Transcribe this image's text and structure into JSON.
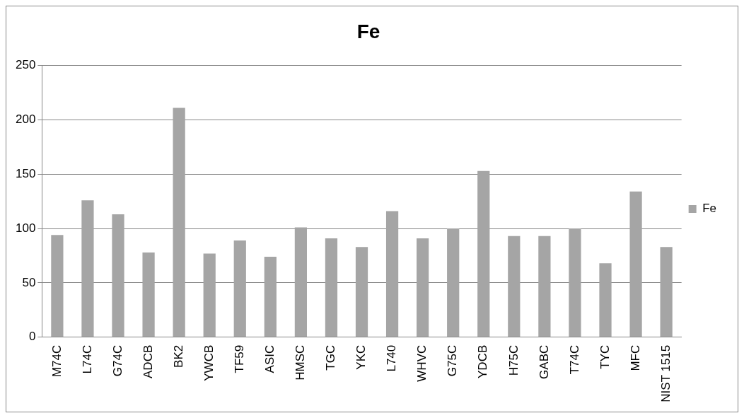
{
  "chart_data": {
    "type": "bar",
    "title": "Fe",
    "categories": [
      "M74C",
      "L74C",
      "G74C",
      "ADCB",
      "BK2",
      "YWCB",
      "TF59",
      "ASIC",
      "HMSC",
      "TGC",
      "YKC",
      "L740",
      "WHVC",
      "G75C",
      "YDCB",
      "H75C",
      "GABC",
      "T74C",
      "TYC",
      "MFC",
      "NIST 1515"
    ],
    "series": [
      {
        "name": "Fe",
        "color": "#a5a5a5",
        "values": [
          94,
          126,
          113,
          78,
          211,
          77,
          89,
          74,
          101,
          91,
          83,
          116,
          91,
          100,
          153,
          93,
          93,
          100,
          68,
          134,
          83
        ]
      }
    ],
    "ylim": [
      0,
      250
    ],
    "yticks": [
      0,
      50,
      100,
      150,
      200,
      250
    ],
    "grid": "y",
    "legend": "right"
  }
}
